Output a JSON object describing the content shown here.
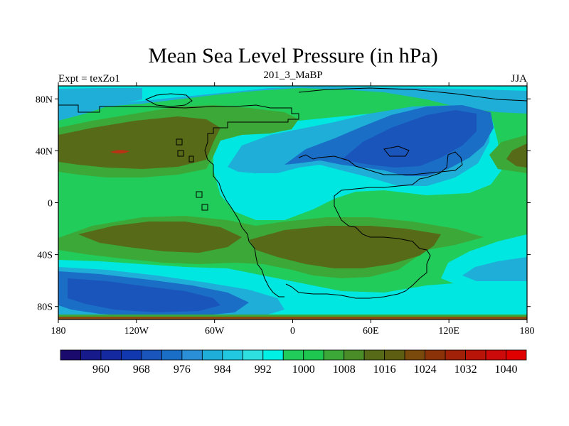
{
  "chart_data": {
    "type": "contour_map",
    "title": "Mean Sea Level Pressure (in hPa)",
    "left_label": "Expt = texZo1",
    "center_label": "201_3_MaBP",
    "right_label": "JJA",
    "x_range": [
      -180,
      180
    ],
    "y_range": [
      -90,
      90
    ],
    "x_ticks": [
      {
        "value": -180,
        "label": "180"
      },
      {
        "value": -120,
        "label": "120W"
      },
      {
        "value": -60,
        "label": "60W"
      },
      {
        "value": 0,
        "label": "0"
      },
      {
        "value": 60,
        "label": "60E"
      },
      {
        "value": 120,
        "label": "120E"
      },
      {
        "value": 180,
        "label": "180"
      }
    ],
    "y_ticks": [
      {
        "value": 80,
        "label": "80N"
      },
      {
        "value": 40,
        "label": "40N"
      },
      {
        "value": 0,
        "label": "0"
      },
      {
        "value": -40,
        "label": "40S"
      },
      {
        "value": -80,
        "label": "80S"
      }
    ],
    "colorbar": {
      "levels": [
        956,
        960,
        964,
        968,
        972,
        976,
        980,
        984,
        988,
        992,
        996,
        1000,
        1004,
        1008,
        1012,
        1016,
        1020,
        1024,
        1028,
        1032,
        1036,
        1040
      ],
      "label_levels": [
        960,
        968,
        976,
        984,
        992,
        1000,
        1008,
        1016,
        1024,
        1032,
        1040
      ],
      "colors": [
        "#1a0a6e",
        "#171a8a",
        "#1428a0",
        "#1238b0",
        "#1a55bb",
        "#1a6ec6",
        "#2a8fd6",
        "#1eaed8",
        "#22c8e0",
        "#2ee0e0",
        "#00f0e6",
        "#22cc5a",
        "#1ec850",
        "#3ca838",
        "#4a8c28",
        "#566a18",
        "#5e5e12",
        "#7a4a0c",
        "#8c3208",
        "#a02008",
        "#b81408",
        "#cc0a0a",
        "#e00000"
      ]
    },
    "map_colors": {
      "deep_low": "#1a55bb",
      "low": "#1a6ec6",
      "mid_low": "#1eaed8",
      "cyan": "#00e6e0",
      "green": "#22cc5a",
      "dark_green": "#3ca838",
      "olive": "#566a18",
      "brown": "#8a4a10",
      "red": "#b83214"
    }
  }
}
